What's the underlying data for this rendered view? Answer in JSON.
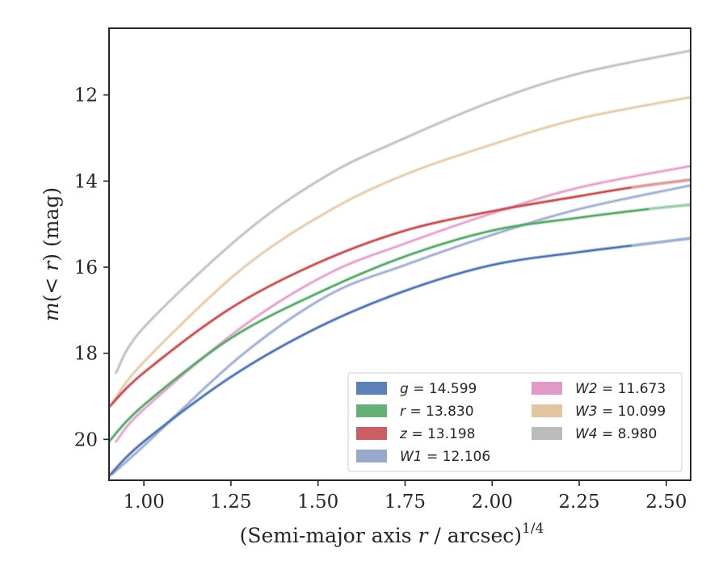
{
  "chart_data": {
    "type": "line",
    "xlabel": "(Semi-major axis r / arcsec)",
    "xlabel_parts": {
      "prefix": "(Semi-major axis ",
      "var": "r",
      "suffix": " / arcsec)",
      "sup": "1/4"
    },
    "ylabel": "m(< r) (mag)",
    "ylabel_parts": {
      "m": "m",
      "open": "(",
      "lt": "< ",
      "r": "r",
      "close": ")",
      "unit": " (mag)"
    },
    "xlim": [
      0.9,
      2.57
    ],
    "ylim": [
      20.95,
      10.45
    ],
    "y_inverted": true,
    "xticks": [
      1.0,
      1.25,
      1.5,
      1.75,
      2.0,
      2.25,
      2.5
    ],
    "xtick_labels": [
      "1.00",
      "1.25",
      "1.50",
      "1.75",
      "2.00",
      "2.25",
      "2.50"
    ],
    "yticks": [
      12,
      14,
      16,
      18,
      20
    ],
    "ytick_labels": [
      "12",
      "14",
      "16",
      "18",
      "20"
    ],
    "grid": false,
    "legend_position": "lower-right",
    "series": [
      {
        "name": "g = 14.599",
        "label_var": "g",
        "label_value": "14.599",
        "color": "#4c72b0",
        "x_start": 0.9,
        "x_solid_end": 2.4,
        "y_points": [
          [
            0.9,
            20.85
          ],
          [
            1.0,
            20.05
          ],
          [
            1.25,
            18.55
          ],
          [
            1.5,
            17.4
          ],
          [
            1.75,
            16.55
          ],
          [
            2.0,
            15.95
          ],
          [
            2.25,
            15.65
          ],
          [
            2.4,
            15.5
          ],
          [
            2.57,
            15.33
          ]
        ]
      },
      {
        "name": "r = 13.830",
        "label_var": "r",
        "label_value": "13.830",
        "color": "#55a868",
        "x_start": 0.9,
        "x_solid_end": 2.45,
        "y_points": [
          [
            0.9,
            20.05
          ],
          [
            1.0,
            19.2
          ],
          [
            1.25,
            17.65
          ],
          [
            1.5,
            16.6
          ],
          [
            1.75,
            15.75
          ],
          [
            2.0,
            15.15
          ],
          [
            2.25,
            14.85
          ],
          [
            2.45,
            14.65
          ],
          [
            2.57,
            14.55
          ]
        ]
      },
      {
        "name": "z = 13.198",
        "label_var": "z",
        "label_value": "13.198",
        "color": "#c44e52",
        "x_start": 0.9,
        "x_solid_end": 2.4,
        "y_points": [
          [
            0.9,
            19.25
          ],
          [
            1.0,
            18.45
          ],
          [
            1.25,
            16.95
          ],
          [
            1.5,
            15.9
          ],
          [
            1.75,
            15.15
          ],
          [
            2.0,
            14.7
          ],
          [
            2.25,
            14.35
          ],
          [
            2.4,
            14.15
          ],
          [
            2.57,
            13.97
          ]
        ]
      },
      {
        "name": "W1 = 12.106",
        "label_var": "W1",
        "label_value": "12.106",
        "color": "#8c9ec6",
        "x_start": 0.91,
        "x_solid_end": 0.91,
        "y_points": [
          [
            0.91,
            20.8
          ],
          [
            1.0,
            20.15
          ],
          [
            1.28,
            18.05
          ],
          [
            1.53,
            16.65
          ],
          [
            1.75,
            15.95
          ],
          [
            2.0,
            15.25
          ],
          [
            2.25,
            14.65
          ],
          [
            2.57,
            14.1
          ]
        ]
      },
      {
        "name": "W2 = 11.673",
        "label_var": "W2",
        "label_value": "11.673",
        "color": "#dd8fc0",
        "x_start": 0.92,
        "x_solid_end": 0.92,
        "y_points": [
          [
            0.92,
            20.05
          ],
          [
            1.0,
            19.3
          ],
          [
            1.28,
            17.4
          ],
          [
            1.53,
            16.15
          ],
          [
            1.75,
            15.45
          ],
          [
            2.0,
            14.75
          ],
          [
            2.25,
            14.15
          ],
          [
            2.57,
            13.65
          ]
        ]
      },
      {
        "name": "W3 = 10.099",
        "label_var": "W3",
        "label_value": "10.099",
        "color": "#dfc09a",
        "x_start": 0.91,
        "x_solid_end": 0.91,
        "y_points": [
          [
            0.91,
            19.15
          ],
          [
            1.0,
            18.2
          ],
          [
            1.28,
            16.05
          ],
          [
            1.53,
            14.7
          ],
          [
            1.75,
            13.85
          ],
          [
            2.0,
            13.15
          ],
          [
            2.25,
            12.55
          ],
          [
            2.57,
            12.05
          ]
        ]
      },
      {
        "name": "W4 = 8.980",
        "label_var": "W4",
        "label_value": "8.980",
        "color": "#b4b4b4",
        "x_start": 0.92,
        "x_solid_end": 0.92,
        "y_points": [
          [
            0.92,
            18.45
          ],
          [
            1.0,
            17.4
          ],
          [
            1.29,
            15.2
          ],
          [
            1.53,
            13.85
          ],
          [
            1.75,
            13.0
          ],
          [
            2.0,
            12.15
          ],
          [
            2.25,
            11.5
          ],
          [
            2.57,
            10.97
          ]
        ]
      }
    ]
  },
  "legend": {
    "items": [
      {
        "var": "g",
        "value": " = 14.599",
        "color": "#4c72b0"
      },
      {
        "var": "r",
        "value": " = 13.830",
        "color": "#55a868"
      },
      {
        "var": "z",
        "value": " = 13.198",
        "color": "#c44e52"
      },
      {
        "var": "W1",
        "value": " = 12.106",
        "color": "#8c9ec6"
      },
      {
        "var": "W2",
        "value": " = 11.673",
        "color": "#dd8fc0"
      },
      {
        "var": "W3",
        "value": " = 10.099",
        "color": "#dfc09a"
      },
      {
        "var": "W4",
        "value": " = 8.980",
        "color": "#b4b4b4"
      }
    ]
  }
}
